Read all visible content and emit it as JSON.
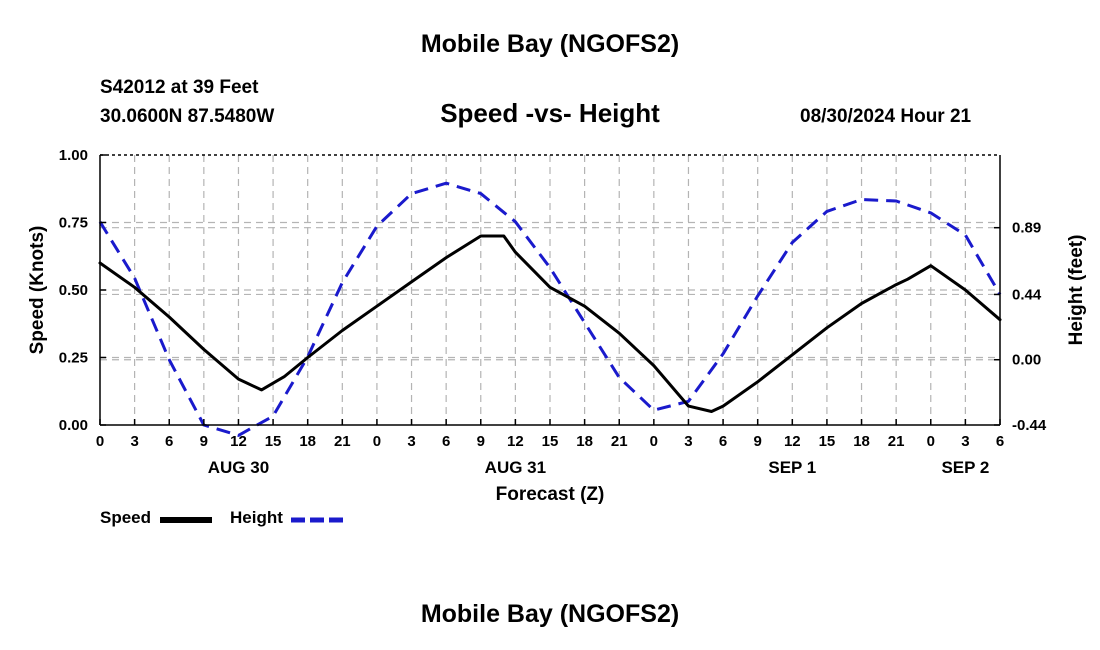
{
  "header": {
    "title": "Mobile Bay (NGOFS2)",
    "station": "S42012 at 39 Feet",
    "coordinates": "30.0600N  87.5480W",
    "subtitle": "Speed -vs- Height",
    "datetime": "08/30/2024 Hour 21"
  },
  "footer": {
    "title": "Mobile Bay (NGOFS2)"
  },
  "legend": {
    "speed_label": "Speed",
    "height_label": "Height"
  },
  "colors": {
    "speed": "#000000",
    "height": "#1a1acc",
    "grid": "#b4b4b4"
  },
  "chart_data": {
    "type": "line",
    "title": "Speed -vs- Height",
    "xlabel": "Forecast (Z)",
    "ylabel": "Speed (Knots)",
    "y2label": "Height (feet)",
    "xlim": [
      0,
      78
    ],
    "ylim": [
      0,
      1
    ],
    "y2lim": [
      -0.44,
      1.38
    ],
    "x_ticks": [
      0,
      3,
      6,
      9,
      12,
      15,
      18,
      21,
      24,
      27,
      30,
      33,
      36,
      39,
      42,
      45,
      48,
      51,
      54,
      57,
      60,
      63,
      66,
      69,
      72,
      75,
      78
    ],
    "x_tick_labels": [
      "0",
      "3",
      "6",
      "9",
      "12",
      "15",
      "18",
      "21",
      "0",
      "3",
      "6",
      "9",
      "12",
      "15",
      "18",
      "21",
      "0",
      "3",
      "6",
      "9",
      "12",
      "15",
      "18",
      "21",
      "0",
      "3",
      "6"
    ],
    "day_labels": [
      {
        "x": 12,
        "label": "AUG 30"
      },
      {
        "x": 36,
        "label": "AUG 31"
      },
      {
        "x": 60,
        "label": "SEP 1"
      },
      {
        "x": 75,
        "label": "SEP 2"
      }
    ],
    "y_ticks": [
      0,
      0.25,
      0.5,
      0.75,
      1.0
    ],
    "y_tick_labels": [
      "0.00",
      "0.25",
      "0.50",
      "0.75",
      "1.00"
    ],
    "y2_ticks": [
      -0.44,
      0.0,
      0.44,
      0.89
    ],
    "y2_tick_labels": [
      "-0.44",
      "0.00",
      "0.44",
      "0.89"
    ],
    "series": [
      {
        "name": "Speed",
        "axis": "left",
        "style": "solid",
        "x": [
          0,
          3,
          6,
          9,
          12,
          14,
          16,
          18,
          21,
          24,
          27,
          30,
          33,
          35,
          36,
          39,
          42,
          45,
          48,
          50,
          51,
          53,
          54,
          57,
          60,
          63,
          66,
          69,
          70,
          72,
          75,
          78
        ],
        "y": [
          0.6,
          0.51,
          0.4,
          0.28,
          0.17,
          0.13,
          0.18,
          0.25,
          0.35,
          0.44,
          0.53,
          0.62,
          0.7,
          0.7,
          0.64,
          0.51,
          0.44,
          0.34,
          0.22,
          0.12,
          0.07,
          0.05,
          0.07,
          0.16,
          0.26,
          0.36,
          0.45,
          0.52,
          0.54,
          0.59,
          0.5,
          0.39
        ]
      },
      {
        "name": "Height",
        "axis": "right",
        "style": "dashed",
        "x": [
          0,
          3,
          6,
          9,
          12,
          15,
          18,
          21,
          24,
          27,
          30,
          33,
          36,
          39,
          42,
          45,
          48,
          51,
          54,
          57,
          60,
          63,
          66,
          69,
          72,
          75,
          78
        ],
        "y": [
          0.93,
          0.55,
          0.0,
          -0.44,
          -0.51,
          -0.38,
          0.02,
          0.52,
          0.9,
          1.12,
          1.19,
          1.12,
          0.93,
          0.62,
          0.25,
          -0.12,
          -0.34,
          -0.28,
          0.04,
          0.43,
          0.79,
          1.0,
          1.08,
          1.07,
          0.99,
          0.84,
          0.44
        ]
      }
    ]
  }
}
